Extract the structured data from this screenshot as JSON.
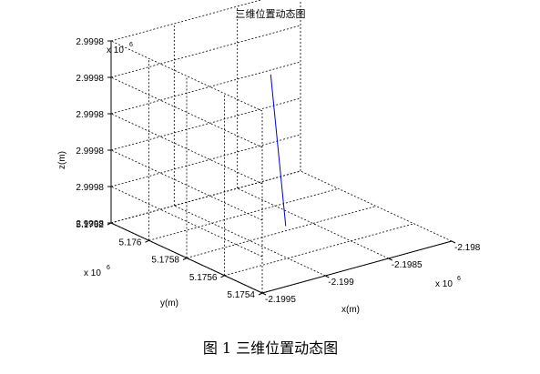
{
  "chart_data": {
    "type": "line3d",
    "title": "三维位置动态图",
    "xlabel": "x(m)",
    "ylabel": "y(m)",
    "zlabel": "z(m)",
    "x_ticks": [
      "-2.1995",
      "-2.199",
      "-2.1985",
      "-2.198"
    ],
    "y_ticks": [
      "5.1754",
      "5.1756",
      "5.1758",
      "5.176",
      "5.1762"
    ],
    "z_ticks": [
      "2.9998",
      "2.9998",
      "2.9998",
      "2.9998",
      "2.9998",
      "2.9998"
    ],
    "x_exponent": "x 10",
    "y_exponent": "x 10",
    "z_exponent": "x 10",
    "exponent_power": "6",
    "xlim": [
      -2.1995,
      -2.198
    ],
    "ylim": [
      5.1754,
      5.1762
    ],
    "zlim_index": [
      0,
      5
    ],
    "grid": true,
    "line_color": "#0000cc",
    "series": [
      {
        "x": [
          -2.19888,
          -2.19846
        ],
        "y": [
          5.17569,
          5.17605
        ],
        "z_index": [
          0.55,
          3.45
        ]
      }
    ]
  },
  "caption": "图 1  三维位置动态图"
}
